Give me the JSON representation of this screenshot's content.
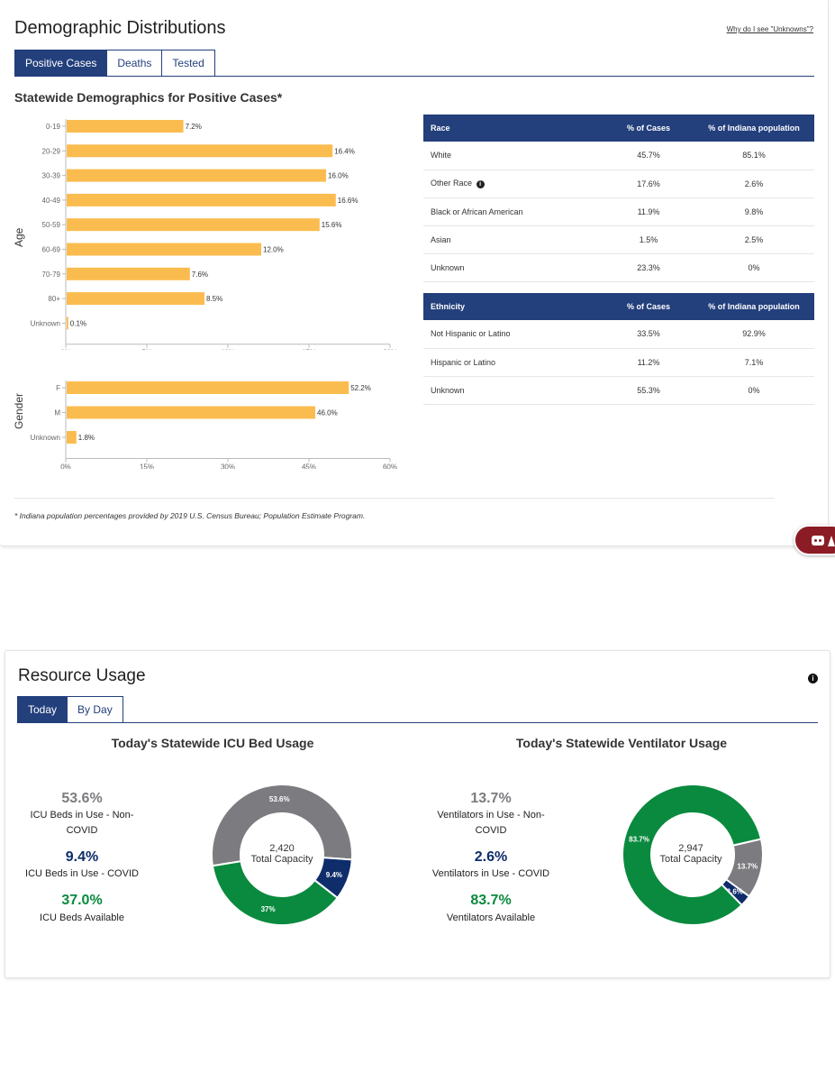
{
  "demographics": {
    "title": "Demographic Distributions",
    "why_link": "Why do I see \"Unknowns\"?",
    "tabs": [
      {
        "label": "Positive Cases",
        "active": true
      },
      {
        "label": "Deaths",
        "active": false
      },
      {
        "label": "Tested",
        "active": false
      }
    ],
    "subtitle": "Statewide Demographics for Positive Cases*",
    "footnote": "* Indiana population percentages provided by 2019 U.S. Census Bureau; Population Estimate Program."
  },
  "chart_data": [
    {
      "type": "bar",
      "orientation": "horizontal",
      "ylabel": "Age",
      "categories": [
        "0-19",
        "20-29",
        "30-39",
        "40-49",
        "50-59",
        "60-69",
        "70-79",
        "80+",
        "Unknown"
      ],
      "values": [
        7.2,
        16.4,
        16.0,
        16.6,
        15.6,
        12.0,
        7.6,
        8.5,
        0.1
      ],
      "value_labels": [
        "7.2%",
        "16.4%",
        "16.0%",
        "16.6%",
        "15.6%",
        "12.0%",
        "7.6%",
        "8.5%",
        "0.1%"
      ],
      "xticks": [
        "0%",
        "5%",
        "10%",
        "15%",
        "20%"
      ],
      "xlim": [
        0,
        20
      ],
      "color": "#fbbc4f",
      "grid": false
    },
    {
      "type": "bar",
      "orientation": "horizontal",
      "ylabel": "Gender",
      "categories": [
        "F",
        "M",
        "Unknown"
      ],
      "values": [
        52.2,
        46.0,
        1.8
      ],
      "value_labels": [
        "52.2%",
        "46.0%",
        "1.8%"
      ],
      "xticks": [
        "0%",
        "15%",
        "30%",
        "45%",
        "60%"
      ],
      "xlim": [
        0,
        60
      ],
      "color": "#fbbc4f",
      "grid": false
    },
    {
      "type": "pie",
      "variant": "donut",
      "title": "Today's Statewide ICU Bed Usage",
      "center_value": "2,420",
      "center_label": "Total Capacity",
      "slices": [
        {
          "label": "ICU Beds in Use - Non-COVID",
          "value": 53.6,
          "slice_label": "53.6%",
          "color": "#7c7c80"
        },
        {
          "label": "ICU Beds in Use - COVID",
          "value": 9.4,
          "slice_label": "9.4%",
          "color": "#0f2d6b"
        },
        {
          "label": "ICU Beds Available",
          "value": 37.0,
          "slice_label": "37%",
          "color": "#0a8a3e"
        }
      ]
    },
    {
      "type": "pie",
      "variant": "donut",
      "title": "Today's Statewide Ventilator Usage",
      "center_value": "2,947",
      "center_label": "Total Capacity",
      "slices": [
        {
          "label": "Ventilators in Use - Non-COVID",
          "value": 13.7,
          "slice_label": "13.7%",
          "color": "#7c7c80"
        },
        {
          "label": "Ventilators in Use - COVID",
          "value": 2.6,
          "slice_label": "2.6%",
          "color": "#0f2d6b"
        },
        {
          "label": "Ventilators Available",
          "value": 83.7,
          "slice_label": "83.7%",
          "color": "#0a8a3e"
        }
      ]
    }
  ],
  "race_table": {
    "headers": [
      "Race",
      "% of Cases",
      "% of Indiana population"
    ],
    "rows": [
      [
        "White",
        "45.7%",
        "85.1%"
      ],
      [
        "Other Race",
        "17.6%",
        "2.6%"
      ],
      [
        "Black or African American",
        "11.9%",
        "9.8%"
      ],
      [
        "Asian",
        "1.5%",
        "2.5%"
      ],
      [
        "Unknown",
        "23.3%",
        "0%"
      ]
    ]
  },
  "ethnicity_table": {
    "headers": [
      "Ethnicity",
      "% of Cases",
      "% of Indiana population"
    ],
    "rows": [
      [
        "Not Hispanic or Latino",
        "33.5%",
        "92.9%"
      ],
      [
        "Hispanic or Latino",
        "11.2%",
        "7.1%"
      ],
      [
        "Unknown",
        "55.3%",
        "0%"
      ]
    ]
  },
  "resource": {
    "title": "Resource Usage",
    "tabs": [
      {
        "label": "Today",
        "active": true
      },
      {
        "label": "By Day",
        "active": false
      }
    ],
    "icu_stats": [
      {
        "pct": "53.6%",
        "label": "ICU Beds in Use - Non-COVID",
        "color": "#7c7c80"
      },
      {
        "pct": "9.4%",
        "label": "ICU Beds in Use - COVID",
        "color": "#0f2d6b"
      },
      {
        "pct": "37.0%",
        "label": "ICU Beds Available",
        "color": "#0a8a3e"
      }
    ],
    "vent_stats": [
      {
        "pct": "13.7%",
        "label": "Ventilators in Use - Non-COVID",
        "color": "#7c7c80"
      },
      {
        "pct": "2.6%",
        "label": "Ventilators in Use - COVID",
        "color": "#0f2d6b"
      },
      {
        "pct": "83.7%",
        "label": "Ventilators Available",
        "color": "#0a8a3e"
      }
    ]
  },
  "colors": {
    "primary": "#233f7c",
    "bar": "#fbbc4f",
    "grey": "#7c7c80",
    "navy": "#0f2d6b",
    "green": "#0a8a3e"
  }
}
